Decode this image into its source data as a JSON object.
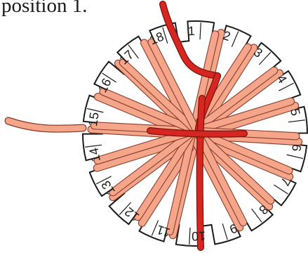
{
  "caption": "position 1.",
  "colors": {
    "background": "#ffffff",
    "disc_fill": "#ffffff",
    "disc_outline": "#1a1a1a",
    "warp_strand": "#f5a58a",
    "warp_strand_outline": "#8a3c2a",
    "working_strand": "#d7261f",
    "working_strand_outline": "#7a1410",
    "text": "#1a1a1a"
  },
  "disc": {
    "slot_count": 18,
    "slots": [
      {
        "label": "1"
      },
      {
        "label": "2"
      },
      {
        "label": "3"
      },
      {
        "label": "4"
      },
      {
        "label": "5"
      },
      {
        "label": "6"
      },
      {
        "label": "7"
      },
      {
        "label": "8"
      },
      {
        "label": "9"
      },
      {
        "label": "10"
      },
      {
        "label": "11"
      },
      {
        "label": "12"
      },
      {
        "label": "13"
      },
      {
        "label": "14"
      },
      {
        "label": "15"
      },
      {
        "label": "16"
      },
      {
        "label": "17"
      },
      {
        "label": "18"
      }
    ]
  }
}
